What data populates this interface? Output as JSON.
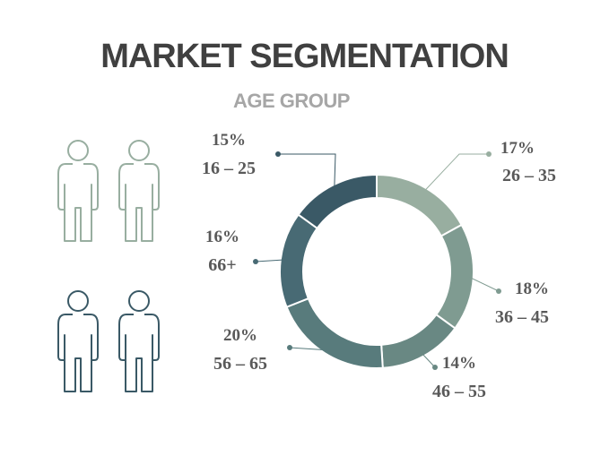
{
  "title": "MARKET SEGMENTATION",
  "subtitle": "AGE GROUP",
  "chart_data": {
    "type": "pie",
    "variant": "donut",
    "slices": [
      {
        "label": "26 – 35",
        "percent_label": "17%",
        "value": 17,
        "color": "#98aea0"
      },
      {
        "label": "36 – 45",
        "percent_label": "18%",
        "value": 18,
        "color": "#7f9b91"
      },
      {
        "label": "46 – 55",
        "percent_label": "14%",
        "value": 14,
        "color": "#698883"
      },
      {
        "label": "56 – 65",
        "percent_label": "20%",
        "value": 20,
        "color": "#587b7c"
      },
      {
        "label": "66+",
        "percent_label": "16%",
        "value": 16,
        "color": "#486a74"
      },
      {
        "label": "16 – 25",
        "percent_label": "15%",
        "value": 15,
        "color": "#3a5966"
      }
    ]
  },
  "icons": [
    {
      "name": "person-icon",
      "color": "#98aea0"
    },
    {
      "name": "person-icon",
      "color": "#98aea0"
    },
    {
      "name": "person-icon",
      "color": "#3a5966"
    },
    {
      "name": "person-icon",
      "color": "#3a5966"
    }
  ]
}
